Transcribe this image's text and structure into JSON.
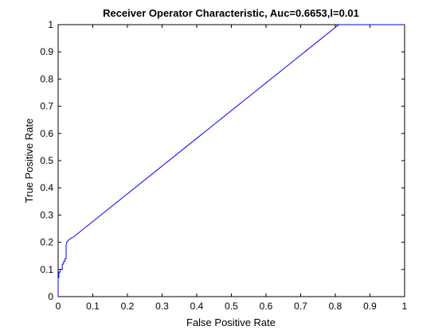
{
  "chart_data": {
    "type": "line",
    "title": "Receiver Operator Characteristic, Auc=0.6653,l=0.01",
    "xlabel": "False Positive Rate",
    "ylabel": "True Positive Rate",
    "xlim": [
      0,
      1
    ],
    "ylim": [
      0,
      1
    ],
    "xticks": [
      "0",
      "0.1",
      "0.2",
      "0.3",
      "0.4",
      "0.5",
      "0.6",
      "0.7",
      "0.8",
      "0.9",
      "1"
    ],
    "yticks": [
      "0",
      "0.1",
      "0.2",
      "0.3",
      "0.4",
      "0.5",
      "0.6",
      "0.7",
      "0.8",
      "0.9",
      "1"
    ],
    "grid": false,
    "series": [
      {
        "color": "#0000ff",
        "x": [
          0,
          0,
          0.002,
          0.002,
          0.006,
          0.006,
          0.012,
          0.012,
          0.016,
          0.016,
          0.02,
          0.02,
          0.023,
          0.023,
          0.025,
          0.028,
          0.032,
          0.038,
          0.045,
          0.81,
          1
        ],
        "y": [
          0,
          0.07,
          0.07,
          0.09,
          0.09,
          0.1,
          0.1,
          0.12,
          0.12,
          0.13,
          0.13,
          0.14,
          0.14,
          0.19,
          0.2,
          0.205,
          0.21,
          0.215,
          0.22,
          1,
          1
        ]
      }
    ]
  }
}
